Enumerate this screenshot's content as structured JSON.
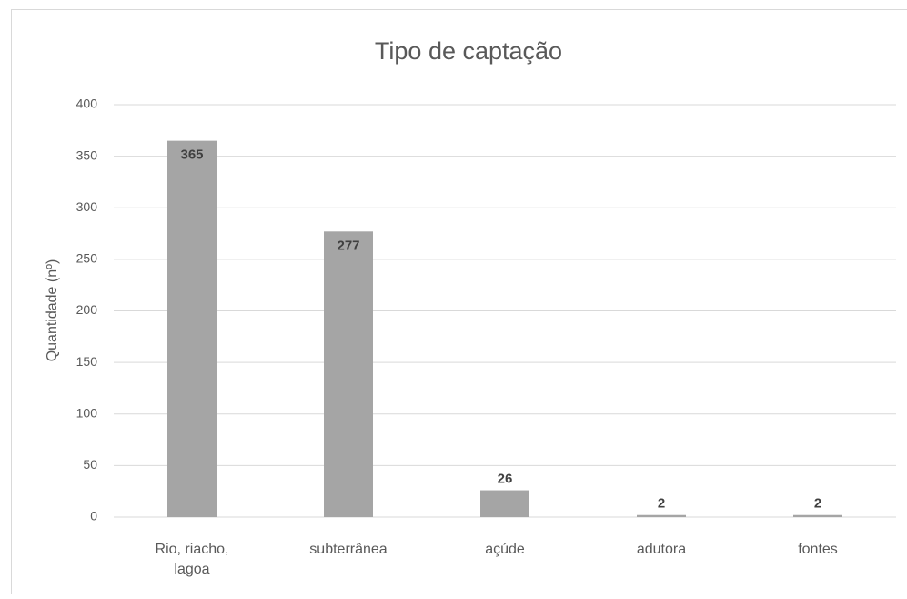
{
  "chart_data": {
    "type": "bar",
    "title": "Tipo de captação",
    "y_label": "Quantidade (nº)",
    "categories": [
      "Rio, riacho, lagoa",
      "subterrânea",
      "açúde",
      "adutora",
      "fontes"
    ],
    "values": [
      365,
      277,
      26,
      2,
      2
    ],
    "color": "#a5a5a5",
    "ylim": [
      0,
      400
    ],
    "yticks": [
      0,
      50,
      100,
      150,
      200,
      250,
      300,
      350,
      400
    ],
    "grid": true,
    "data_labels": true
  }
}
